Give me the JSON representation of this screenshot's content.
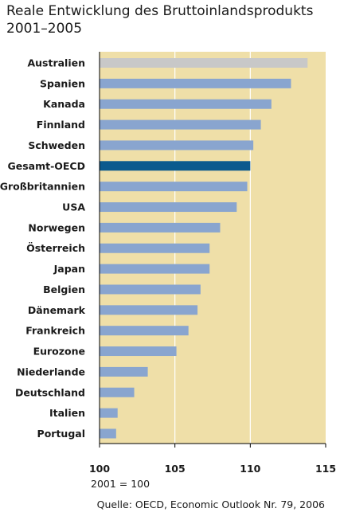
{
  "title_line1": "Reale Entwicklung des Bruttoinlandsprodukts",
  "title_line2": "2001–2005",
  "note": "2001 = 100",
  "source": "Quelle: OECD, Economic Outlook Nr. 79, 2006",
  "colors": {
    "background": "#efdfa8",
    "bar": "#89a5cf",
    "bar_highlight": "#0b5a8e",
    "bar_first": "#c8c8c8",
    "axis": "#000000"
  },
  "chart_data": {
    "type": "bar",
    "orientation": "horizontal",
    "title": "Reale Entwicklung des Bruttoinlandsprodukts 2001–2005",
    "xlim": [
      100,
      115
    ],
    "xticks": [
      100,
      105,
      110,
      115
    ],
    "grid": true,
    "categories": [
      "Australien",
      "Spanien",
      "Kanada",
      "Finnland",
      "Schweden",
      "Gesamt-OECD",
      "Großbritannien",
      "USA",
      "Norwegen",
      "Österreich",
      "Japan",
      "Belgien",
      "Dänemark",
      "Frankreich",
      "Eurozone",
      "Niederlande",
      "Deutschland",
      "Italien",
      "Portugal"
    ],
    "values": [
      113.8,
      112.7,
      111.4,
      110.7,
      110.2,
      110.0,
      109.8,
      109.1,
      108.0,
      107.3,
      107.3,
      106.7,
      106.5,
      105.9,
      105.1,
      103.2,
      102.3,
      101.2,
      101.1
    ],
    "highlight": [
      "Gesamt-OECD"
    ],
    "muted": [
      "Australien"
    ]
  }
}
